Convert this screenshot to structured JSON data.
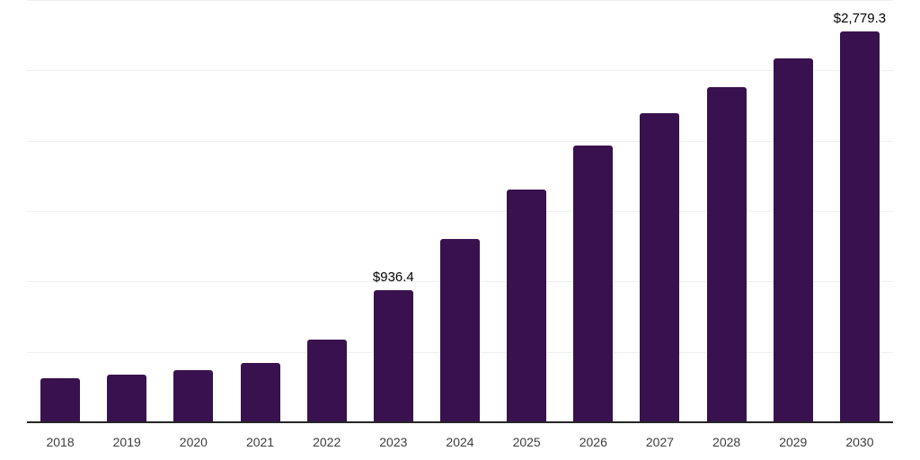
{
  "chart_data": {
    "type": "bar",
    "title": "",
    "xlabel": "",
    "ylabel": "",
    "categories": [
      "2018",
      "2019",
      "2020",
      "2021",
      "2022",
      "2023",
      "2024",
      "2025",
      "2026",
      "2027",
      "2028",
      "2029",
      "2030"
    ],
    "values": [
      313,
      338,
      370,
      421,
      587,
      936.4,
      1302,
      1653,
      1966,
      2196,
      2381,
      2585,
      2779.3
    ],
    "data_labels": {
      "2023": "$936.4",
      "2030": "$2,779.3"
    },
    "ylim": [
      0,
      3000
    ],
    "gridline_interval": 500,
    "grid": true,
    "legend": "none",
    "colors": {
      "bar": "#38114E",
      "axis_line": "#262626",
      "gridline": "#efefef",
      "tick_label": "#3d3d3d",
      "data_label": "#000000",
      "background": "#ffffff"
    }
  }
}
